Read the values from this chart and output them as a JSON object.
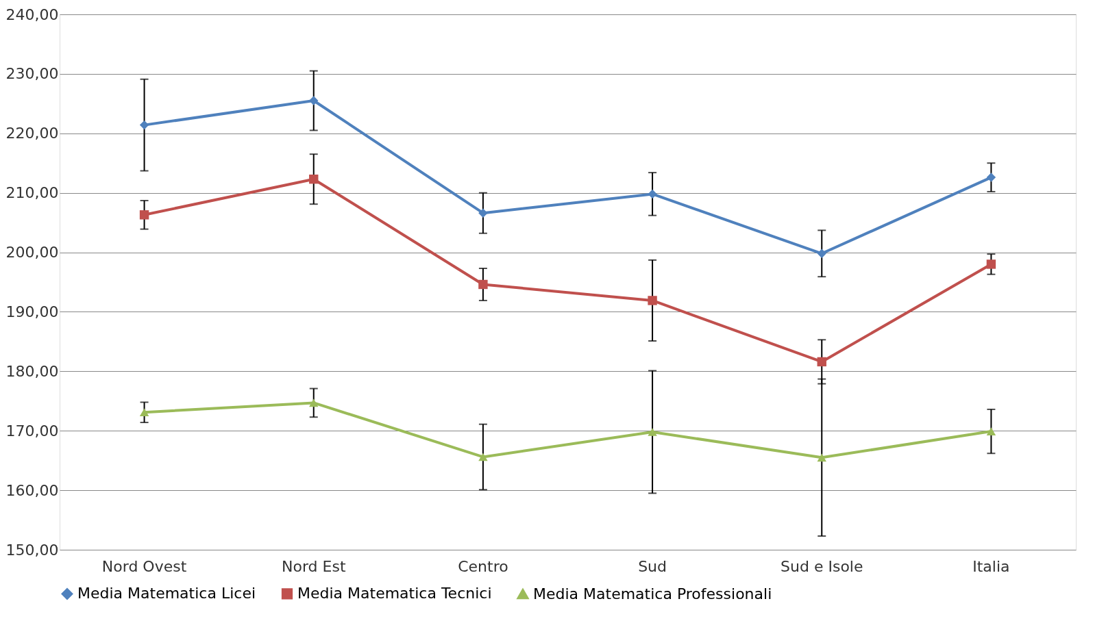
{
  "chart_data": {
    "type": "line",
    "categories": [
      "Nord Ovest",
      "Nord Est",
      "Centro",
      "Sud",
      "Sud e Isole",
      "Italia"
    ],
    "series": [
      {
        "name": "Media Matematica Licei",
        "color": "#4f81bd",
        "marker": "diamond",
        "values": [
          221.4,
          225.5,
          206.6,
          209.8,
          199.8,
          212.6
        ],
        "errors": [
          7.7,
          5.0,
          3.4,
          3.6,
          3.9,
          2.4
        ]
      },
      {
        "name": "Media Matematica Tecnici",
        "color": "#c0504d",
        "marker": "square",
        "values": [
          206.3,
          212.3,
          194.6,
          191.9,
          181.6,
          198.0
        ],
        "errors": [
          2.4,
          4.2,
          2.7,
          6.8,
          3.7,
          1.7
        ]
      },
      {
        "name": "Media Matematica Professionali",
        "color": "#9bbb59",
        "marker": "triangle",
        "values": [
          173.1,
          174.7,
          165.6,
          169.8,
          165.5,
          169.9
        ],
        "errors": [
          1.7,
          2.4,
          5.5,
          10.3,
          13.2,
          3.7
        ]
      }
    ],
    "ylim": [
      150,
      240
    ],
    "yticks": [
      {
        "value": 150,
        "label": "150,00"
      },
      {
        "value": 160,
        "label": "160,00"
      },
      {
        "value": 170,
        "label": "170,00"
      },
      {
        "value": 180,
        "label": "180,00"
      },
      {
        "value": 190,
        "label": "190,00"
      },
      {
        "value": 200,
        "label": "200,00"
      },
      {
        "value": 210,
        "label": "210,00"
      },
      {
        "value": 220,
        "label": "220,00"
      },
      {
        "value": 230,
        "label": "230,00"
      },
      {
        "value": 240,
        "label": "240,00"
      }
    ],
    "grid": "y",
    "legend": "bottom",
    "line_style": "solid"
  }
}
